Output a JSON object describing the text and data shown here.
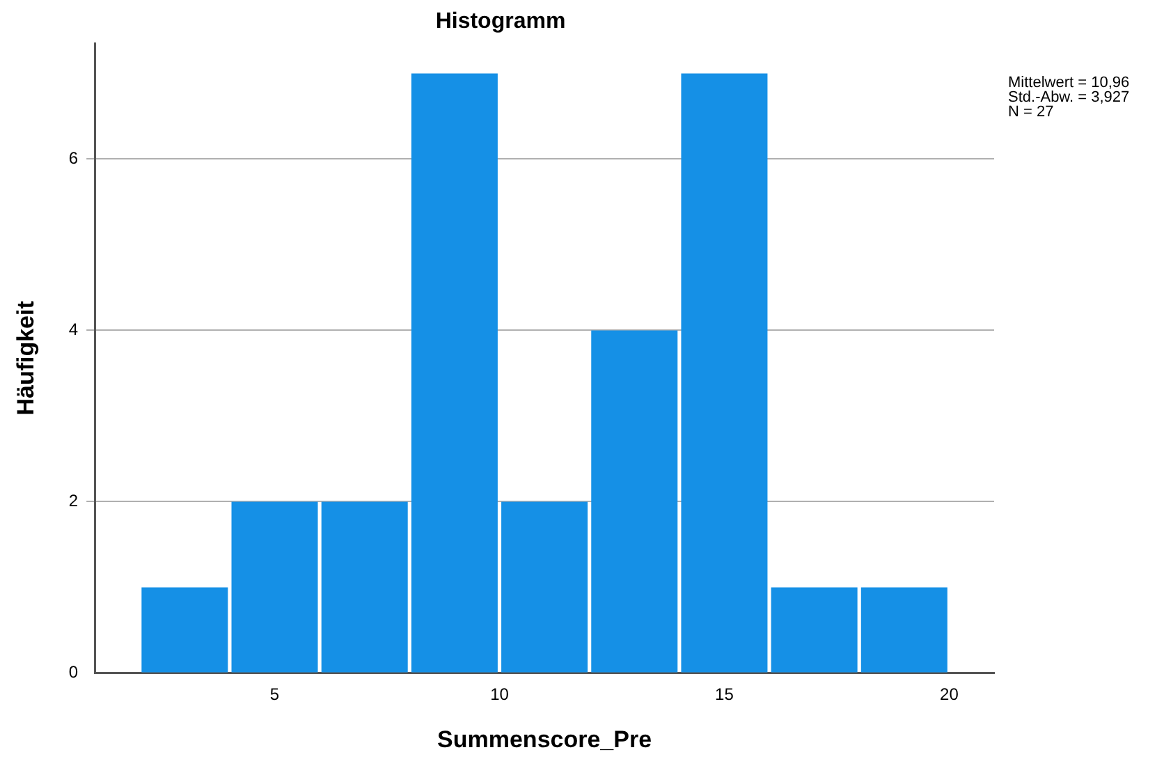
{
  "chart_data": {
    "type": "histogram",
    "title": "Histogramm",
    "xlabel": "Summenscore_Pre",
    "ylabel": "Häufigkeit",
    "bins": [
      2,
      4,
      6,
      8,
      10,
      12,
      14,
      16,
      18,
      20
    ],
    "values": [
      1,
      2,
      2,
      7,
      2,
      4,
      7,
      1,
      1
    ],
    "color": "#1590e6",
    "xlim": [
      1,
      21
    ],
    "xticks": [
      5,
      10,
      15,
      20
    ],
    "ylim": [
      0,
      7.35
    ],
    "yticks": [
      0,
      2,
      4,
      6
    ],
    "grid": "y",
    "legend": false,
    "annotations": [
      "Mittelwert = 10,96",
      "Std.-Abw. = 3,927",
      "N = 27"
    ]
  }
}
